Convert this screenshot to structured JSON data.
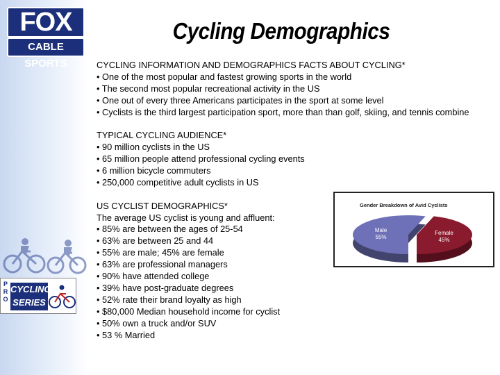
{
  "logo": {
    "brand": "FOX",
    "sub": "CABLE SPORTS"
  },
  "title": "Cycling Demographics",
  "sections": [
    {
      "heading": "CYCLING INFORMATION AND DEMOGRAPHICS FACTS ABOUT CYCLING*",
      "lines": [
        "• One of the most popular and fastest growing sports in the world",
        "• The second most popular recreational activity in the US",
        "• One out of every three Americans participates in the sport at some level",
        "• Cyclists is the third largest participation sport, more than than golf, skiing, and tennis combine"
      ]
    },
    {
      "heading": "TYPICAL CYCLING AUDIENCE*",
      "lines": [
        "• 90 million cyclists in the US",
        "• 65 million people attend professional cycling events",
        "• 6 million bicycle commuters",
        "• 250,000 competitive adult cyclists in US"
      ]
    },
    {
      "heading": "US CYCLIST DEMOGRAPHICS*",
      "lines": [
        "The average US cyclist is young and affluent:",
        "• 85% are between the ages of 25-54",
        "• 63% are between 25 and 44",
        "• 55% are male; 45% are female",
        "• 63% are professional managers",
        "• 90% have attended college",
        "• 39% have post-graduate degrees",
        "• 52% rate their brand loyalty as high",
        "• $80,000 Median household income for cyclist",
        "• 50% own a truck and/or SUV",
        "• 53 % Married"
      ]
    }
  ],
  "pro_logo": {
    "letters": [
      "P",
      "R",
      "O"
    ],
    "line1": "CYCLING",
    "line2": "SERIES"
  },
  "chart_data": {
    "type": "pie",
    "title": "Gender Breakdown of Avid Cyclists",
    "slices": [
      {
        "label": "Male",
        "value": 55,
        "value_label": "55%",
        "color": "#6f71b8"
      },
      {
        "label": "Female",
        "value": 45,
        "value_label": "45%",
        "color": "#8a1a2e"
      }
    ]
  }
}
